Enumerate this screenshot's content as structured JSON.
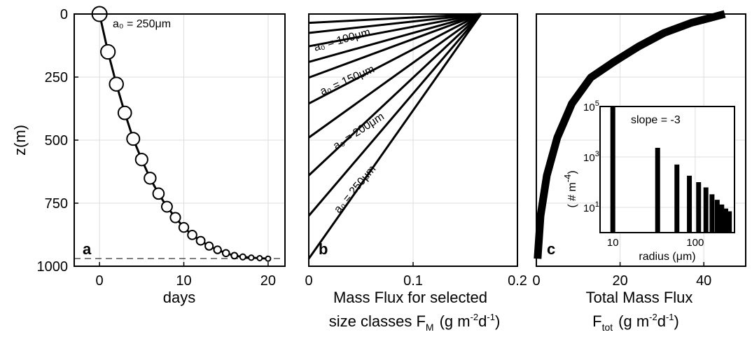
{
  "chart_data": [
    {
      "panel": "a",
      "type": "line",
      "xlabel": "days",
      "ylabel": "z(m)",
      "xlim": [
        -3,
        22
      ],
      "ylim": [
        1000,
        0
      ],
      "y_reversed": true,
      "xticks": [
        0,
        10,
        20
      ],
      "yticks": [
        0,
        250,
        500,
        750,
        1000
      ],
      "grid": true,
      "annotation": "a₀ = 250μm",
      "reference_line": {
        "y": 970,
        "style": "dashed"
      },
      "x": [
        0,
        1,
        2,
        3,
        4,
        5,
        6,
        7,
        8,
        9,
        10,
        11,
        12,
        13,
        14,
        15,
        16,
        17,
        18,
        19,
        20
      ],
      "y": [
        0,
        150,
        278,
        392,
        495,
        577,
        651,
        712,
        764,
        807,
        846,
        876,
        899,
        920,
        935,
        948,
        958,
        963,
        966,
        968,
        970
      ]
    },
    {
      "panel": "b",
      "type": "line",
      "xlabel_line1": "Mass Flux for selected",
      "xlabel_line2_prefix": "size classes F",
      "xlabel_line2_sub": "M",
      "xlabel_line2_units": "(g m",
      "xlabel_line2_exp1": "-2",
      "xlabel_line2_mid": "d",
      "xlabel_line2_exp2": "-1",
      "xlabel_line2_end": ")",
      "xlim": [
        0,
        0.2
      ],
      "ylim": [
        1000,
        0
      ],
      "y_reversed": true,
      "xticks": [
        0,
        0.1,
        0.2
      ],
      "grid": true,
      "point_top": {
        "x": 0.165,
        "y": 0
      },
      "line_bottoms": [
        35,
        75,
        128,
        190,
        252,
        355,
        490,
        640,
        800,
        970
      ],
      "annotations": [
        "a₀ = 100μm",
        "a₀ = 150μm",
        "a₀ = 200μm",
        "a₀ = 250μm"
      ]
    },
    {
      "panel": "c",
      "type": "line",
      "xlabel_line1": "Total Mass Flux",
      "xlabel_line2_prefix": "F",
      "xlabel_line2_sub": "tot",
      "xlabel_line2_units": "(g m",
      "xlabel_line2_exp1": "-2",
      "xlabel_line2_mid": "d",
      "xlabel_line2_exp2": "-1",
      "xlabel_line2_end": ")",
      "xlim": [
        0,
        50
      ],
      "ylim": [
        1000,
        0
      ],
      "y_reversed": true,
      "xticks": [
        0,
        20,
        40
      ],
      "grid": true,
      "x": [
        0.3,
        1,
        2.5,
        5,
        8.5,
        13,
        18.5,
        24.5,
        30.5,
        37,
        45
      ],
      "y": [
        970,
        800,
        640,
        490,
        355,
        252,
        190,
        128,
        75,
        35,
        0
      ]
    },
    {
      "panel": "c-inset",
      "type": "bar",
      "xlabel": "radius (μm)",
      "ylabel_prefix": "( # m",
      "ylabel_exp": "-4",
      "ylabel_suffix": ")",
      "x_scale": "log",
      "y_scale": "log",
      "xlim": [
        7,
        300
      ],
      "ylim": [
        1,
        100000
      ],
      "xticks": [
        "10",
        "100"
      ],
      "yticks": [
        "10",
        "10",
        "10"
      ],
      "ytick_exps": [
        "5",
        "3",
        "1"
      ],
      "grid": true,
      "annotation": "slope = -3",
      "x": [
        10,
        35,
        60,
        85,
        110,
        135,
        160,
        185,
        210,
        235,
        260
      ],
      "values": [
        100000,
        2300,
        500,
        180,
        100,
        62,
        33,
        20,
        13,
        9,
        7
      ]
    }
  ]
}
